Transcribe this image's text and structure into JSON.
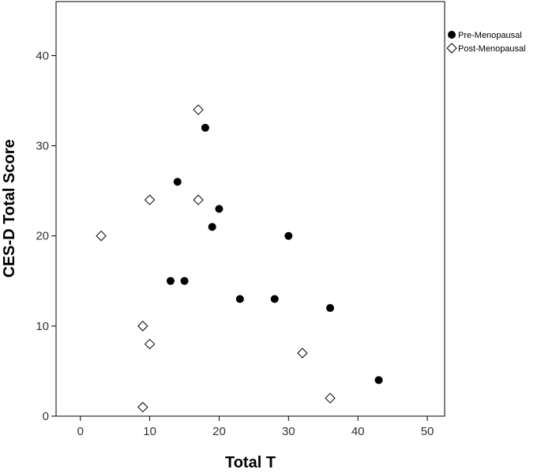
{
  "chart_data": {
    "type": "scatter",
    "title": "",
    "xlabel": "Total T",
    "ylabel": "CES-D Total Score",
    "xlim": [
      -3.5,
      52.5
    ],
    "ylim": [
      0,
      46
    ],
    "xticks": [
      0,
      10,
      20,
      30,
      40,
      50
    ],
    "yticks": [
      0,
      10,
      20,
      30,
      40
    ],
    "xtick_labels": [
      "0",
      "10",
      "20",
      "30",
      "40",
      "50"
    ],
    "ytick_labels": [
      "0",
      "10",
      "20",
      "30",
      "40"
    ],
    "grid": false,
    "legend_position": "top-right, outside plot",
    "series": [
      {
        "name": "Pre-Menopausal",
        "marker": "filled-circle",
        "color": "#000000",
        "points": [
          {
            "x": 18,
            "y": 32
          },
          {
            "x": 14,
            "y": 26
          },
          {
            "x": 20,
            "y": 23
          },
          {
            "x": 19,
            "y": 21
          },
          {
            "x": 30,
            "y": 20
          },
          {
            "x": 13,
            "y": 15
          },
          {
            "x": 15,
            "y": 15
          },
          {
            "x": 23,
            "y": 13
          },
          {
            "x": 28,
            "y": 13
          },
          {
            "x": 36,
            "y": 12
          },
          {
            "x": 43,
            "y": 4
          }
        ]
      },
      {
        "name": "Post-Menopausal",
        "marker": "open-diamond",
        "color": "#000000",
        "points": [
          {
            "x": 17,
            "y": 34
          },
          {
            "x": 10,
            "y": 24
          },
          {
            "x": 17,
            "y": 24
          },
          {
            "x": 3,
            "y": 20
          },
          {
            "x": 9,
            "y": 10
          },
          {
            "x": 10,
            "y": 8
          },
          {
            "x": 32,
            "y": 7
          },
          {
            "x": 36,
            "y": 2
          },
          {
            "x": 9,
            "y": 1
          }
        ]
      }
    ]
  }
}
